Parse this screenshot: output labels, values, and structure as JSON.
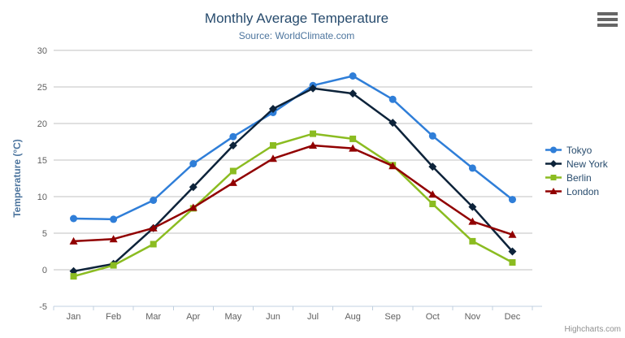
{
  "chart_data": {
    "type": "line",
    "title": "Monthly Average Temperature",
    "subtitle": "Source: WorldClimate.com",
    "categories": [
      "Jan",
      "Feb",
      "Mar",
      "Apr",
      "May",
      "Jun",
      "Jul",
      "Aug",
      "Sep",
      "Oct",
      "Nov",
      "Dec"
    ],
    "xlabel": "",
    "ylabel": "Temperature (°C)",
    "ylim": [
      -5,
      30
    ],
    "ytick_interval": 5,
    "grid": true,
    "legend_position": "right",
    "series": [
      {
        "name": "Tokyo",
        "marker": "circle",
        "color": "#2f7ed8",
        "values": [
          7.0,
          6.9,
          9.5,
          14.5,
          18.2,
          21.5,
          25.2,
          26.5,
          23.3,
          18.3,
          13.9,
          9.6
        ]
      },
      {
        "name": "New York",
        "marker": "diamond",
        "color": "#0d233a",
        "values": [
          -0.2,
          0.8,
          5.7,
          11.3,
          17.0,
          22.0,
          24.8,
          24.1,
          20.1,
          14.1,
          8.6,
          2.5
        ]
      },
      {
        "name": "Berlin",
        "marker": "square",
        "color": "#8bbc21",
        "values": [
          -0.9,
          0.6,
          3.5,
          8.4,
          13.5,
          17.0,
          18.6,
          17.9,
          14.3,
          9.0,
          3.9,
          1.0
        ]
      },
      {
        "name": "London",
        "marker": "triangle",
        "color": "#910000",
        "values": [
          3.9,
          4.2,
          5.7,
          8.5,
          11.9,
          15.2,
          17.0,
          16.6,
          14.2,
          10.3,
          6.6,
          4.8
        ]
      }
    ],
    "colors": {
      "title": "#274b6d",
      "subtitle": "#4d759e",
      "axis_label": "#606060",
      "axis_title": "#4d759e",
      "grid_line": "#c0c0c0",
      "axis_line": "#c0d0e0",
      "legend_text": "#274b6d"
    }
  },
  "credits": "Highcharts.com"
}
